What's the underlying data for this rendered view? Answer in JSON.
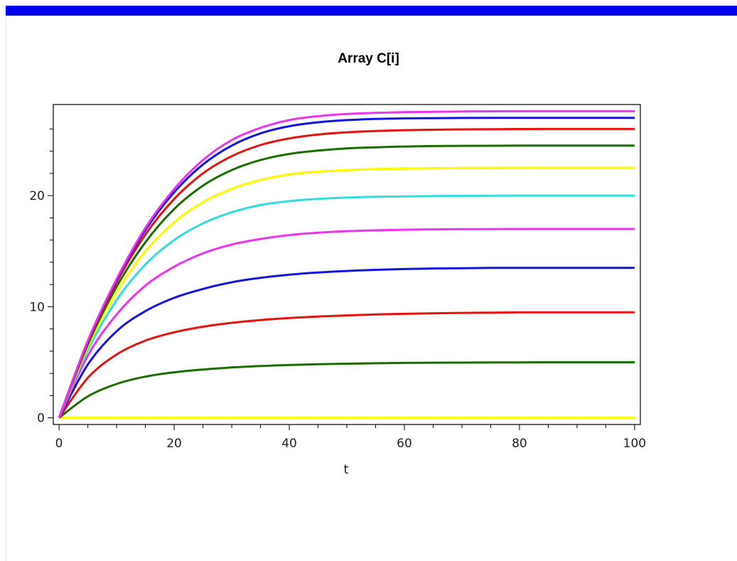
{
  "chart_data": {
    "type": "line",
    "title": "Array C[i]",
    "xlabel": "t",
    "ylabel": "",
    "xlim": [
      -1,
      101
    ],
    "ylim": [
      -0.6,
      28.2
    ],
    "x_ticks": [
      0,
      20,
      40,
      60,
      80,
      100
    ],
    "y_ticks": [
      0,
      10,
      20
    ],
    "grid": false,
    "legend": "none",
    "x": [
      0,
      5,
      10,
      15,
      20,
      25,
      30,
      35,
      40,
      45,
      50,
      55,
      60,
      65,
      70,
      75,
      80,
      85,
      90,
      95,
      100
    ],
    "series": [
      {
        "color": "#ffff00",
        "values": [
          0,
          0,
          0,
          0,
          0,
          0,
          0,
          0,
          0,
          0,
          0,
          0,
          0,
          0,
          0,
          0,
          0,
          0,
          0,
          0,
          0
        ]
      },
      {
        "color": "#1a6e00",
        "values": [
          0,
          1.93,
          3.05,
          3.71,
          4.1,
          4.35,
          4.53,
          4.66,
          4.75,
          4.82,
          4.87,
          4.91,
          4.94,
          4.96,
          4.97,
          4.98,
          4.99,
          5.0,
          5.0,
          5.0,
          5.0
        ]
      },
      {
        "color": "#e8120c",
        "values": [
          0,
          3.6,
          5.7,
          6.95,
          7.7,
          8.2,
          8.55,
          8.8,
          8.98,
          9.12,
          9.22,
          9.3,
          9.36,
          9.41,
          9.44,
          9.47,
          9.49,
          9.5,
          9.5,
          9.5,
          9.5
        ]
      },
      {
        "color": "#1414e0",
        "values": [
          0,
          4.8,
          7.8,
          9.6,
          10.8,
          11.6,
          12.2,
          12.6,
          12.88,
          13.08,
          13.22,
          13.32,
          13.39,
          13.44,
          13.47,
          13.49,
          13.5,
          13.5,
          13.5,
          13.5,
          13.5
        ]
      },
      {
        "color": "#ee33ee",
        "values": [
          0,
          5.6,
          9.3,
          11.9,
          13.6,
          14.8,
          15.6,
          16.1,
          16.45,
          16.66,
          16.8,
          16.88,
          16.93,
          16.96,
          16.98,
          16.99,
          17.0,
          17.0,
          17.0,
          17.0,
          17.0
        ]
      },
      {
        "color": "#33dddd",
        "values": [
          0,
          6.1,
          10.6,
          13.8,
          16.0,
          17.5,
          18.5,
          19.15,
          19.5,
          19.7,
          19.82,
          19.89,
          19.93,
          19.96,
          19.98,
          19.99,
          20.0,
          20.0,
          20.0,
          20.0,
          20.0
        ]
      },
      {
        "color": "#8a8a00",
        "values": [
          0,
          6.4,
          11.3,
          15.0,
          17.6,
          19.4,
          20.6,
          21.4,
          21.9,
          22.15,
          22.3,
          22.38,
          22.43,
          22.46,
          22.48,
          22.49,
          22.5,
          22.5,
          22.5,
          22.5,
          22.5
        ]
      },
      {
        "color": "#ffff00",
        "values": [
          0,
          6.4,
          11.3,
          15.0,
          17.6,
          19.4,
          20.6,
          21.4,
          21.9,
          22.15,
          22.3,
          22.38,
          22.43,
          22.46,
          22.48,
          22.49,
          22.5,
          22.5,
          22.5,
          22.5,
          22.5
        ]
      },
      {
        "color": "#1a6e00",
        "values": [
          0,
          6.6,
          11.8,
          15.8,
          18.8,
          20.9,
          22.3,
          23.2,
          23.75,
          24.05,
          24.25,
          24.35,
          24.42,
          24.46,
          24.48,
          24.49,
          24.5,
          24.5,
          24.5,
          24.5,
          24.5
        ]
      },
      {
        "color": "#e8120c",
        "values": [
          0,
          6.8,
          12.2,
          16.5,
          19.7,
          22.0,
          23.55,
          24.55,
          25.15,
          25.5,
          25.7,
          25.82,
          25.89,
          25.93,
          25.96,
          25.98,
          25.99,
          26.0,
          26.0,
          26.0,
          26.0
        ]
      },
      {
        "color": "#1414e0",
        "values": [
          0,
          6.9,
          12.4,
          16.9,
          20.3,
          22.8,
          24.5,
          25.6,
          26.25,
          26.6,
          26.8,
          26.9,
          26.95,
          26.97,
          26.99,
          27.0,
          27.0,
          27.0,
          27.0,
          27.0,
          27.0
        ]
      },
      {
        "color": "#ee33ee",
        "values": [
          0,
          6.95,
          12.5,
          17.1,
          20.6,
          23.2,
          25.0,
          26.1,
          26.8,
          27.15,
          27.35,
          27.45,
          27.51,
          27.55,
          27.57,
          27.59,
          27.6,
          27.6,
          27.6,
          27.6,
          27.6
        ]
      }
    ]
  }
}
